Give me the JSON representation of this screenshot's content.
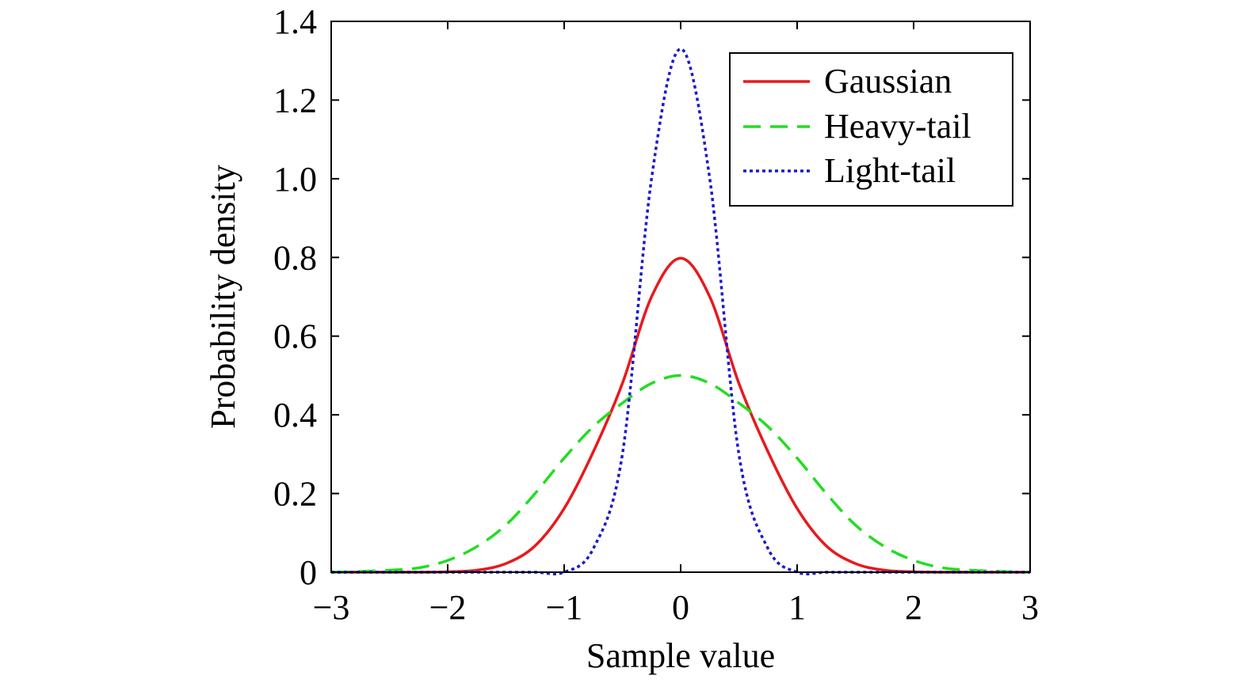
{
  "chart_data": {
    "type": "line",
    "title": "",
    "xlabel": "Sample value",
    "ylabel": "Probability density",
    "xlim": [
      -3,
      3
    ],
    "ylim": [
      0,
      1.4
    ],
    "xticks": [
      -3,
      -2,
      -1,
      0,
      1,
      2,
      3
    ],
    "xtick_labels": [
      "−3",
      "−2",
      "−1",
      "0",
      "1",
      "2",
      "3"
    ],
    "yticks": [
      0,
      0.2,
      0.4,
      0.6,
      0.8,
      1.0,
      1.2,
      1.4
    ],
    "ytick_labels": [
      "0",
      "0.2",
      "0.4",
      "0.6",
      "0.8",
      "1.0",
      "1.2",
      "1.4"
    ],
    "grid": false,
    "legend_position": "top-right",
    "x": [
      -3,
      -2.75,
      -2.5,
      -2.25,
      -2,
      -1.75,
      -1.5,
      -1.25,
      -1,
      -0.75,
      -0.5,
      -0.25,
      0,
      0.25,
      0.5,
      0.75,
      1,
      1.25,
      1.5,
      1.75,
      2,
      2.25,
      2.5,
      2.75,
      3
    ],
    "series": [
      {
        "name": "Gaussian",
        "color": "#e8191c",
        "style": "solid",
        "values": [
          0.0,
          0.0,
          0.0,
          0.0,
          0.001,
          0.005,
          0.022,
          0.067,
          0.162,
          0.306,
          0.48,
          0.7,
          0.798,
          0.7,
          0.48,
          0.306,
          0.162,
          0.067,
          0.022,
          0.005,
          0.001,
          0.0,
          0.0,
          0.0,
          0.0
        ]
      },
      {
        "name": "Heavy-tail",
        "color": "#22dd22",
        "style": "dashed",
        "values": [
          0.0,
          0.002,
          0.005,
          0.011,
          0.03,
          0.065,
          0.12,
          0.2,
          0.29,
          0.37,
          0.43,
          0.48,
          0.5,
          0.48,
          0.43,
          0.37,
          0.29,
          0.2,
          0.12,
          0.065,
          0.03,
          0.011,
          0.005,
          0.002,
          0.0
        ]
      },
      {
        "name": "Light-tail",
        "color": "#1a1acc",
        "style": "dotted",
        "values": [
          0.0,
          0.0,
          0.0,
          0.0,
          0.0,
          0.0,
          0.0,
          0.0,
          0.0,
          0.06,
          0.3,
          1.0,
          1.33,
          1.0,
          0.3,
          0.06,
          0.0,
          0.0,
          0.0,
          0.0,
          0.0,
          0.0,
          0.0,
          0.0,
          0.0
        ]
      }
    ]
  }
}
